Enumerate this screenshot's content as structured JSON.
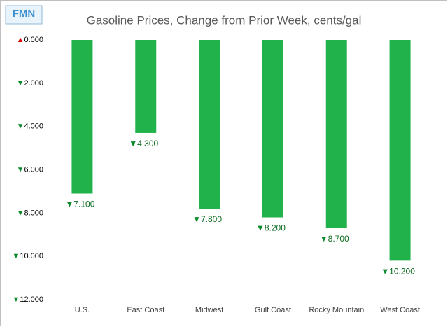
{
  "logo": "FMN",
  "chart_data": {
    "type": "bar",
    "title": "Gasoline Prices, Change from Prior Week, cents/gal",
    "categories": [
      "U.S.",
      "East Coast",
      "Midwest",
      "Gulf Coast",
      "Rocky Mountain",
      "West Coast"
    ],
    "values": [
      -7.1,
      -4.3,
      -7.8,
      -8.2,
      -8.7,
      -10.2
    ],
    "value_labels": [
      "▼7.100",
      "▼4.300",
      "▼7.800",
      "▼8.200",
      "▼8.700",
      "▼10.200"
    ],
    "color": "#21b24b",
    "ylim": [
      0,
      -12
    ],
    "yticks": [
      {
        "value": 0,
        "label": "▲0.000"
      },
      {
        "value": -2,
        "label": "▼2.000"
      },
      {
        "value": -4,
        "label": "▼4.000"
      },
      {
        "value": -6,
        "label": "▼6.000"
      },
      {
        "value": -8,
        "label": "▼8.000"
      },
      {
        "value": -10,
        "label": "▼10.000"
      },
      {
        "value": -12,
        "label": "▼12.000"
      }
    ],
    "grid": false
  }
}
